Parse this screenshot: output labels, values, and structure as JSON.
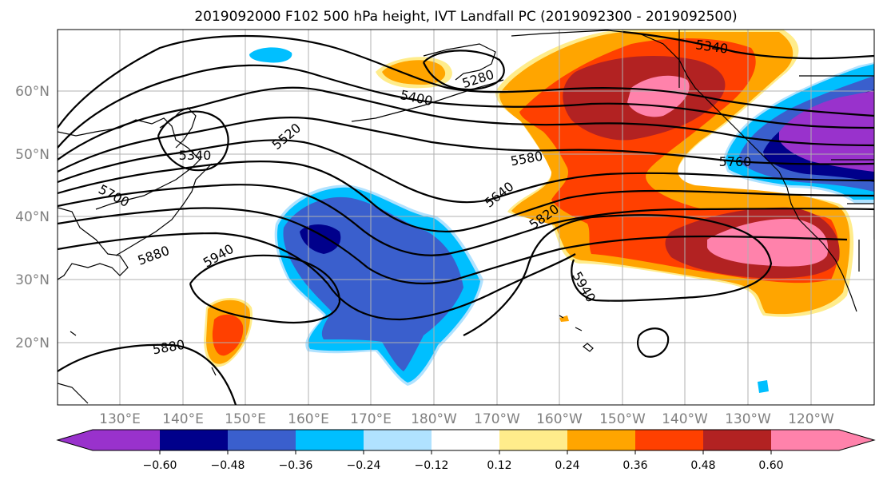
{
  "title": "2019092000 F102 500 hPa height, IVT Landfall PC (2019092300 - 2019092500)",
  "map": {
    "lon_labels": [
      "130°E",
      "140°E",
      "150°E",
      "160°E",
      "170°E",
      "180°W",
      "170°W",
      "160°W",
      "150°W",
      "140°W",
      "130°W",
      "120°W"
    ],
    "lat_labels": [
      "60°N",
      "50°N",
      "40°N",
      "30°N",
      "20°N"
    ],
    "contour_labels": [
      "5280",
      "5340",
      "5400",
      "5520",
      "5340",
      "5700",
      "5580",
      "5640",
      "5820",
      "5880",
      "5940",
      "5760",
      "5940",
      "5880"
    ],
    "colors": {
      "purple": "#9932cc",
      "navy": "#00008b",
      "royal": "#3a5fcd",
      "sky": "#00bfff",
      "pale_blue": "#b0e2ff",
      "white": "#ffffff",
      "yellow": "#ffec8b",
      "orange": "#ffa500",
      "red_orange": "#ff4000",
      "dark_red": "#b22222",
      "pink": "#ff82ab"
    }
  },
  "colorbar": {
    "ticks": [
      "−0.60",
      "−0.48",
      "−0.36",
      "−0.24",
      "−0.12",
      "0.12",
      "0.24",
      "0.36",
      "0.48",
      "0.60"
    ],
    "colors": [
      "#9932cc",
      "#00008b",
      "#3a5fcd",
      "#00bfff",
      "#b0e2ff",
      "#ffffff",
      "#ffec8b",
      "#ffa500",
      "#ff4000",
      "#b22222",
      "#ff82ab"
    ]
  }
}
